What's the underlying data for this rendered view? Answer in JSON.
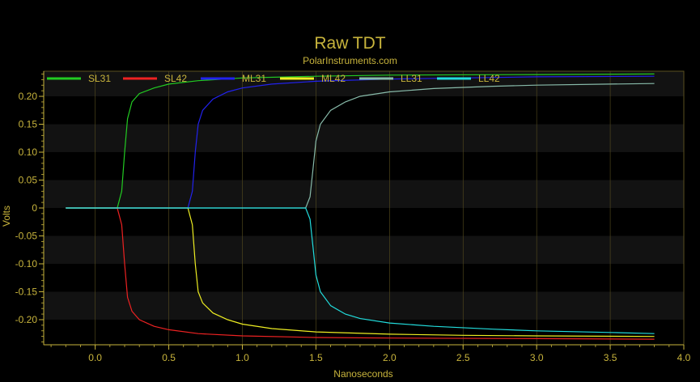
{
  "chart_data": {
    "type": "line",
    "title": "Raw TDT",
    "subtitle": "PolarInstruments.com",
    "xlabel": "Nanoseconds",
    "ylabel": "Volts",
    "xlim": [
      -0.35,
      4.0
    ],
    "ylim": [
      -0.245,
      0.245
    ],
    "x_ticks": [
      0.0,
      0.5,
      1.0,
      1.5,
      2.0,
      2.5,
      3.0,
      3.5,
      4.0
    ],
    "x_tick_labels": [
      "0.0",
      "0.5",
      "1.0",
      "1.5",
      "2.0",
      "2.5",
      "3.0",
      "3.5",
      "4.0"
    ],
    "y_ticks": [
      0.2,
      0.15,
      0.1,
      0.05,
      0,
      -0.05,
      -0.1,
      -0.15,
      -0.2
    ],
    "y_tick_labels": [
      "0.20",
      "0.15",
      "0.10",
      "0.05",
      "0",
      "-0.05",
      "-0.10",
      "-0.15",
      "-0.20"
    ],
    "grid": true,
    "legend_position": "top",
    "series": [
      {
        "name": "SL31",
        "color": "#22cc22",
        "x": [
          -0.2,
          0.15,
          0.18,
          0.2,
          0.22,
          0.25,
          0.3,
          0.4,
          0.5,
          0.7,
          1.0,
          1.5,
          2.0,
          3.0,
          3.8
        ],
        "y": [
          0,
          0,
          0.03,
          0.1,
          0.16,
          0.19,
          0.205,
          0.215,
          0.222,
          0.228,
          0.233,
          0.236,
          0.238,
          0.239,
          0.24
        ]
      },
      {
        "name": "SL42",
        "color": "#ee2222",
        "x": [
          -0.2,
          0.15,
          0.18,
          0.2,
          0.22,
          0.25,
          0.3,
          0.4,
          0.5,
          0.7,
          1.0,
          1.5,
          2.0,
          3.0,
          3.8
        ],
        "y": [
          0,
          0,
          -0.03,
          -0.1,
          -0.16,
          -0.185,
          -0.2,
          -0.212,
          -0.218,
          -0.225,
          -0.229,
          -0.232,
          -0.233,
          -0.234,
          -0.235
        ]
      },
      {
        "name": "ML31",
        "color": "#2222ee",
        "x": [
          -0.2,
          0.63,
          0.66,
          0.68,
          0.7,
          0.73,
          0.8,
          0.9,
          1.0,
          1.2,
          1.5,
          2.0,
          2.5,
          3.0,
          3.8
        ],
        "y": [
          0,
          0,
          0.03,
          0.1,
          0.15,
          0.175,
          0.195,
          0.208,
          0.215,
          0.222,
          0.227,
          0.231,
          0.233,
          0.235,
          0.236
        ]
      },
      {
        "name": "ML42",
        "color": "#eeee22",
        "x": [
          -0.2,
          0.63,
          0.66,
          0.68,
          0.7,
          0.73,
          0.8,
          0.9,
          1.0,
          1.2,
          1.5,
          2.0,
          2.5,
          3.0,
          3.8
        ],
        "y": [
          0,
          0,
          -0.03,
          -0.1,
          -0.15,
          -0.17,
          -0.188,
          -0.2,
          -0.208,
          -0.216,
          -0.222,
          -0.226,
          -0.228,
          -0.229,
          -0.23
        ]
      },
      {
        "name": "LL31",
        "color": "#88bbaa",
        "x": [
          -0.2,
          1.43,
          1.46,
          1.48,
          1.5,
          1.53,
          1.6,
          1.7,
          1.8,
          2.0,
          2.3,
          2.7,
          3.0,
          3.5,
          3.8
        ],
        "y": [
          0,
          0,
          0.02,
          0.07,
          0.12,
          0.15,
          0.175,
          0.19,
          0.2,
          0.208,
          0.214,
          0.218,
          0.22,
          0.222,
          0.223
        ]
      },
      {
        "name": "LL42",
        "color": "#22dddd",
        "x": [
          -0.2,
          1.43,
          1.46,
          1.48,
          1.5,
          1.53,
          1.6,
          1.7,
          1.8,
          2.0,
          2.3,
          2.7,
          3.0,
          3.5,
          3.8
        ],
        "y": [
          0,
          0,
          -0.02,
          -0.07,
          -0.12,
          -0.15,
          -0.175,
          -0.19,
          -0.198,
          -0.206,
          -0.212,
          -0.217,
          -0.22,
          -0.223,
          -0.225
        ]
      }
    ]
  },
  "colors": {
    "background": "#000000",
    "plot_band_light": "#121212",
    "plot_band_dark": "#000000",
    "axis": "#c8b43c",
    "grid": "#5a5020"
  }
}
